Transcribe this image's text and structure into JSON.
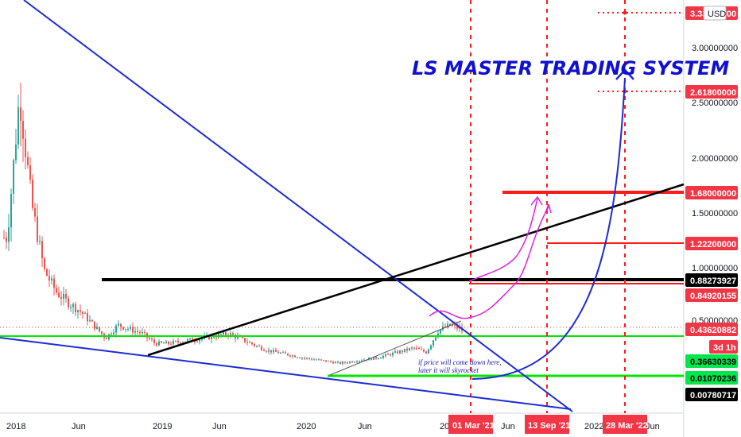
{
  "title": "LS MASTER TRADING SYSTEM",
  "currency": "USD",
  "note_lines": [
    "if price will come down here,",
    "later it will skyrocket"
  ],
  "interval_badge": "3d 1h",
  "x_axis_labels": [
    "2018",
    "Jun",
    "2019",
    "Jun",
    "2020",
    "Jun",
    "20",
    "Jun",
    "2022",
    "Jun"
  ],
  "date_markers": [
    "01 Mar '21",
    "13 Sep '21",
    "28 Mar '22"
  ],
  "y_axis_labels": [
    "3.00000000",
    "2.50000000",
    "2.00000000",
    "1.50000000",
    "1.00000000",
    "0.50000000"
  ],
  "price_tags": [
    {
      "text": "3.33000000",
      "bg": "#f23645",
      "fg": "#ffffff"
    },
    {
      "text": "2.61800000",
      "bg": "#f23645",
      "fg": "#ffffff"
    },
    {
      "text": "1.68000000",
      "bg": "#f23645",
      "fg": "#ffffff"
    },
    {
      "text": "1.22200000",
      "bg": "#f23645",
      "fg": "#ffffff"
    },
    {
      "text": "0.88273927",
      "bg": "#000000",
      "fg": "#ffffff"
    },
    {
      "text": "0.84920155",
      "bg": "#f23645",
      "fg": "#ffffff"
    },
    {
      "text": "0.43620882",
      "bg": "#f23645",
      "fg": "#ffffff"
    },
    {
      "text": "0.36630339",
      "bg": "#00e64d",
      "fg": "#000000"
    },
    {
      "text": "0.01070236",
      "bg": "#00e64d",
      "fg": "#000000"
    },
    {
      "text": "0.00780717",
      "bg": "#000000",
      "fg": "#ffffff"
    }
  ],
  "colors": {
    "up_candle": "#26a69a",
    "down_candle": "#ef5350",
    "trendline_blue": "#1c2bd4",
    "level_black": "#000000",
    "level_red": "#ff1a1a",
    "level_green": "#00e600",
    "projection_magenta": "#e020e0"
  },
  "chart_data": {
    "type": "candlestick",
    "title": "LS MASTER TRADING SYSTEM",
    "quote_currency": "USD",
    "y_ticks": [
      0.5,
      1.0,
      1.5,
      2.0,
      2.5,
      3.0
    ],
    "y_range_approx": [
      0.0,
      3.45
    ],
    "x_range": [
      "2017-11",
      "2022-09"
    ],
    "close_trend": [
      [
        "2017-12",
        1.3
      ],
      [
        "2018-01",
        2.6
      ],
      [
        "2018-02",
        1.6
      ],
      [
        "2018-03",
        1.0
      ],
      [
        "2018-04",
        0.8
      ],
      [
        "2018-05",
        0.7
      ],
      [
        "2018-06",
        0.62
      ],
      [
        "2018-07",
        0.5
      ],
      [
        "2018-08",
        0.38
      ],
      [
        "2018-09",
        0.5
      ],
      [
        "2018-10",
        0.46
      ],
      [
        "2018-11",
        0.42
      ],
      [
        "2018-12",
        0.33
      ],
      [
        "2019-01",
        0.33
      ],
      [
        "2019-04",
        0.38
      ],
      [
        "2019-06",
        0.42
      ],
      [
        "2019-09",
        0.27
      ],
      [
        "2019-12",
        0.2
      ],
      [
        "2020-03",
        0.15
      ],
      [
        "2020-06",
        0.2
      ],
      [
        "2020-08",
        0.26
      ],
      [
        "2020-09",
        0.29
      ],
      [
        "2020-10",
        0.25
      ],
      [
        "2020-11",
        0.45
      ],
      [
        "2020-12",
        0.5
      ],
      [
        "2021-01",
        0.45
      ]
    ],
    "levels": [
      {
        "price": 3.33,
        "style": "dotted",
        "color": "red"
      },
      {
        "price": 2.618,
        "style": "dotted",
        "color": "red"
      },
      {
        "price": 1.68,
        "style": "solid",
        "color": "red"
      },
      {
        "price": 1.222,
        "style": "solid",
        "color": "red"
      },
      {
        "price": 0.88273927,
        "style": "solid",
        "color": "black"
      },
      {
        "price": 0.84920155,
        "style": "solid",
        "color": "red"
      },
      {
        "price": 0.43620882,
        "style": "dotted",
        "color": "red"
      },
      {
        "price": 0.36630339,
        "style": "solid",
        "color": "green"
      },
      {
        "price": 0.01070236,
        "style": "solid",
        "color": "green"
      }
    ],
    "vertical_markers": [
      "2021-03-01",
      "2021-09-13",
      "2022-03-28"
    ],
    "annotations": [
      "if price will come down here,",
      "later it will skyrocket"
    ],
    "grid": false,
    "legend": "none"
  }
}
